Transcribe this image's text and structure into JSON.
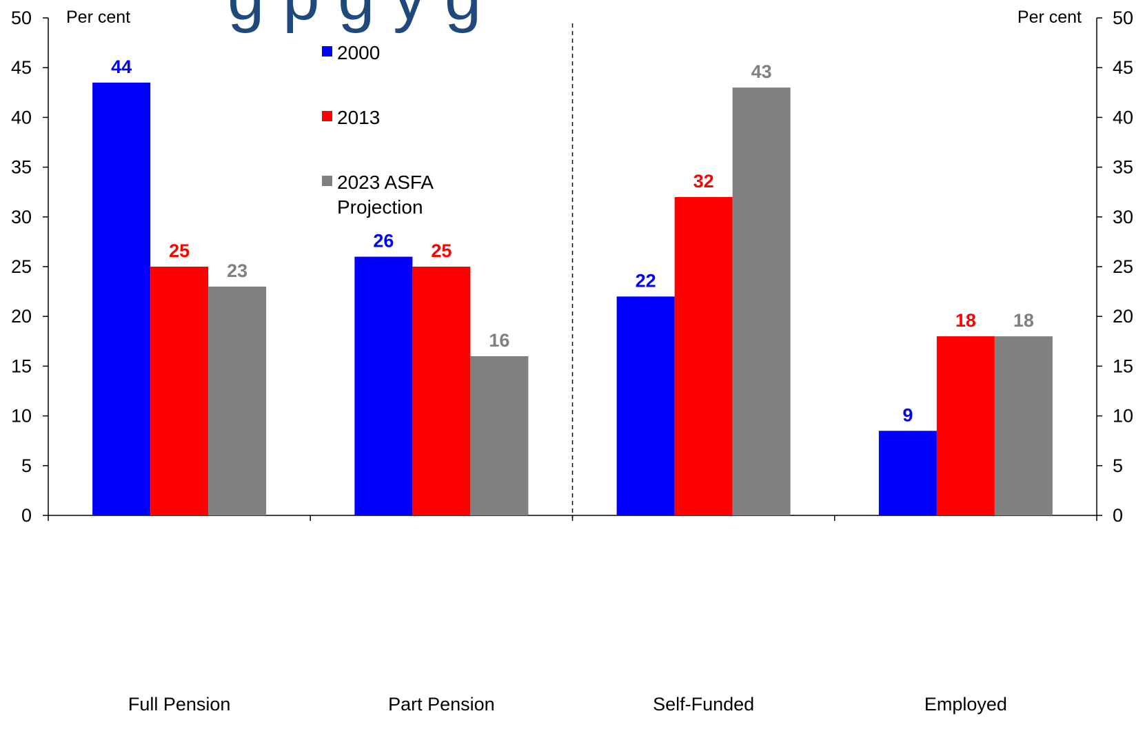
{
  "title_fragment": "g p          g   y g",
  "chart_data": {
    "type": "bar",
    "categories": [
      "Full Pension",
      "Part Pension",
      "Self-Funded",
      "Employed"
    ],
    "series": [
      {
        "name": "2000",
        "color": "#0000ff",
        "values": [
          43.5,
          26,
          22,
          8.5
        ],
        "labels": [
          "44",
          "26",
          "22",
          "9"
        ]
      },
      {
        "name": "2013",
        "color": "#ff0000",
        "values": [
          25,
          25,
          32,
          18
        ],
        "labels": [
          "25",
          "25",
          "32",
          "18"
        ]
      },
      {
        "name": "2023 ASFA Projection",
        "color": "#808080",
        "values": [
          23,
          16,
          43,
          18
        ],
        "labels": [
          "23",
          "16",
          "43",
          "18"
        ]
      }
    ],
    "legend_lines": [
      [
        "2000"
      ],
      [
        "2013"
      ],
      [
        "2023 ASFA",
        "Projection"
      ]
    ],
    "ylim": [
      0,
      50
    ],
    "yticks": [
      "0",
      "5",
      "10",
      "15",
      "20",
      "25",
      "30",
      "35",
      "40",
      "45",
      "50"
    ],
    "ylabel_left": "Per cent",
    "ylabel_right": "Per cent",
    "legend_position": "top-left",
    "grid": false,
    "divider": "dashed vertical line between Part Pension and Self-Funded"
  }
}
